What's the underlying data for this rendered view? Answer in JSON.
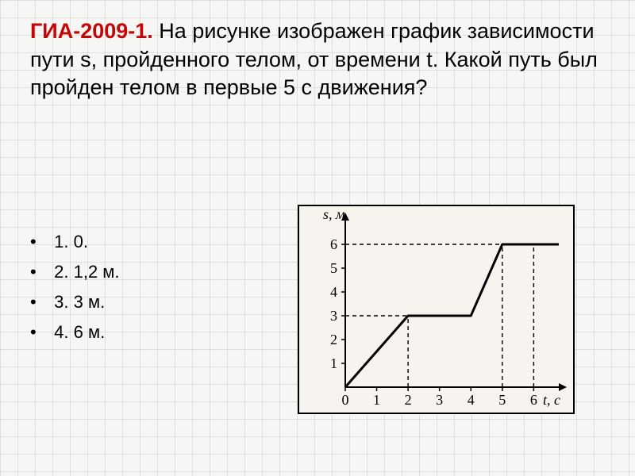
{
  "question": {
    "prefix": "ГИА-2009-1.",
    "text": " На рисунке изображен график зависимости пути s, пройденного телом, от времени t. Какой путь был пройден телом в первые 5 с движения?"
  },
  "answers": [
    {
      "n": "1.",
      "text": "0."
    },
    {
      "n": "2.",
      "text": "1,2 м."
    },
    {
      "n": "3.",
      "text": "3 м."
    },
    {
      "n": "4.",
      "text": "6 м."
    }
  ],
  "chart": {
    "type": "line",
    "y_label": "s, м",
    "x_label": "t, с",
    "xlim": [
      0,
      6.8
    ],
    "ylim": [
      0,
      7
    ],
    "x_ticks": [
      "0",
      "1",
      "2",
      "3",
      "4",
      "5",
      "6"
    ],
    "y_ticks": [
      "1",
      "2",
      "3",
      "4",
      "5",
      "6"
    ],
    "line_points": [
      {
        "x": 0,
        "y": 0
      },
      {
        "x": 2,
        "y": 3
      },
      {
        "x": 4,
        "y": 3
      },
      {
        "x": 5,
        "y": 6
      },
      {
        "x": 6.8,
        "y": 6
      }
    ],
    "dash_lines": [
      {
        "type": "v",
        "x": 2,
        "y0": 0,
        "y1": 3
      },
      {
        "type": "h",
        "x0": 0,
        "x1": 2,
        "y": 3
      },
      {
        "type": "v",
        "x": 5,
        "y0": 0,
        "y1": 6
      },
      {
        "type": "v",
        "x": 6,
        "y0": 0,
        "y1": 6
      },
      {
        "type": "h",
        "x0": 0,
        "x1": 5,
        "y": 6
      }
    ],
    "line_width": 3,
    "line_color": "#000000",
    "dash_color": "#000000",
    "dash_width": 1.4,
    "axis_color": "#000000",
    "axis_width": 2,
    "tick_fontsize": 18,
    "label_fontsize": 18,
    "background_color": "#f7f3ee",
    "frame_border_color": "#000000"
  }
}
